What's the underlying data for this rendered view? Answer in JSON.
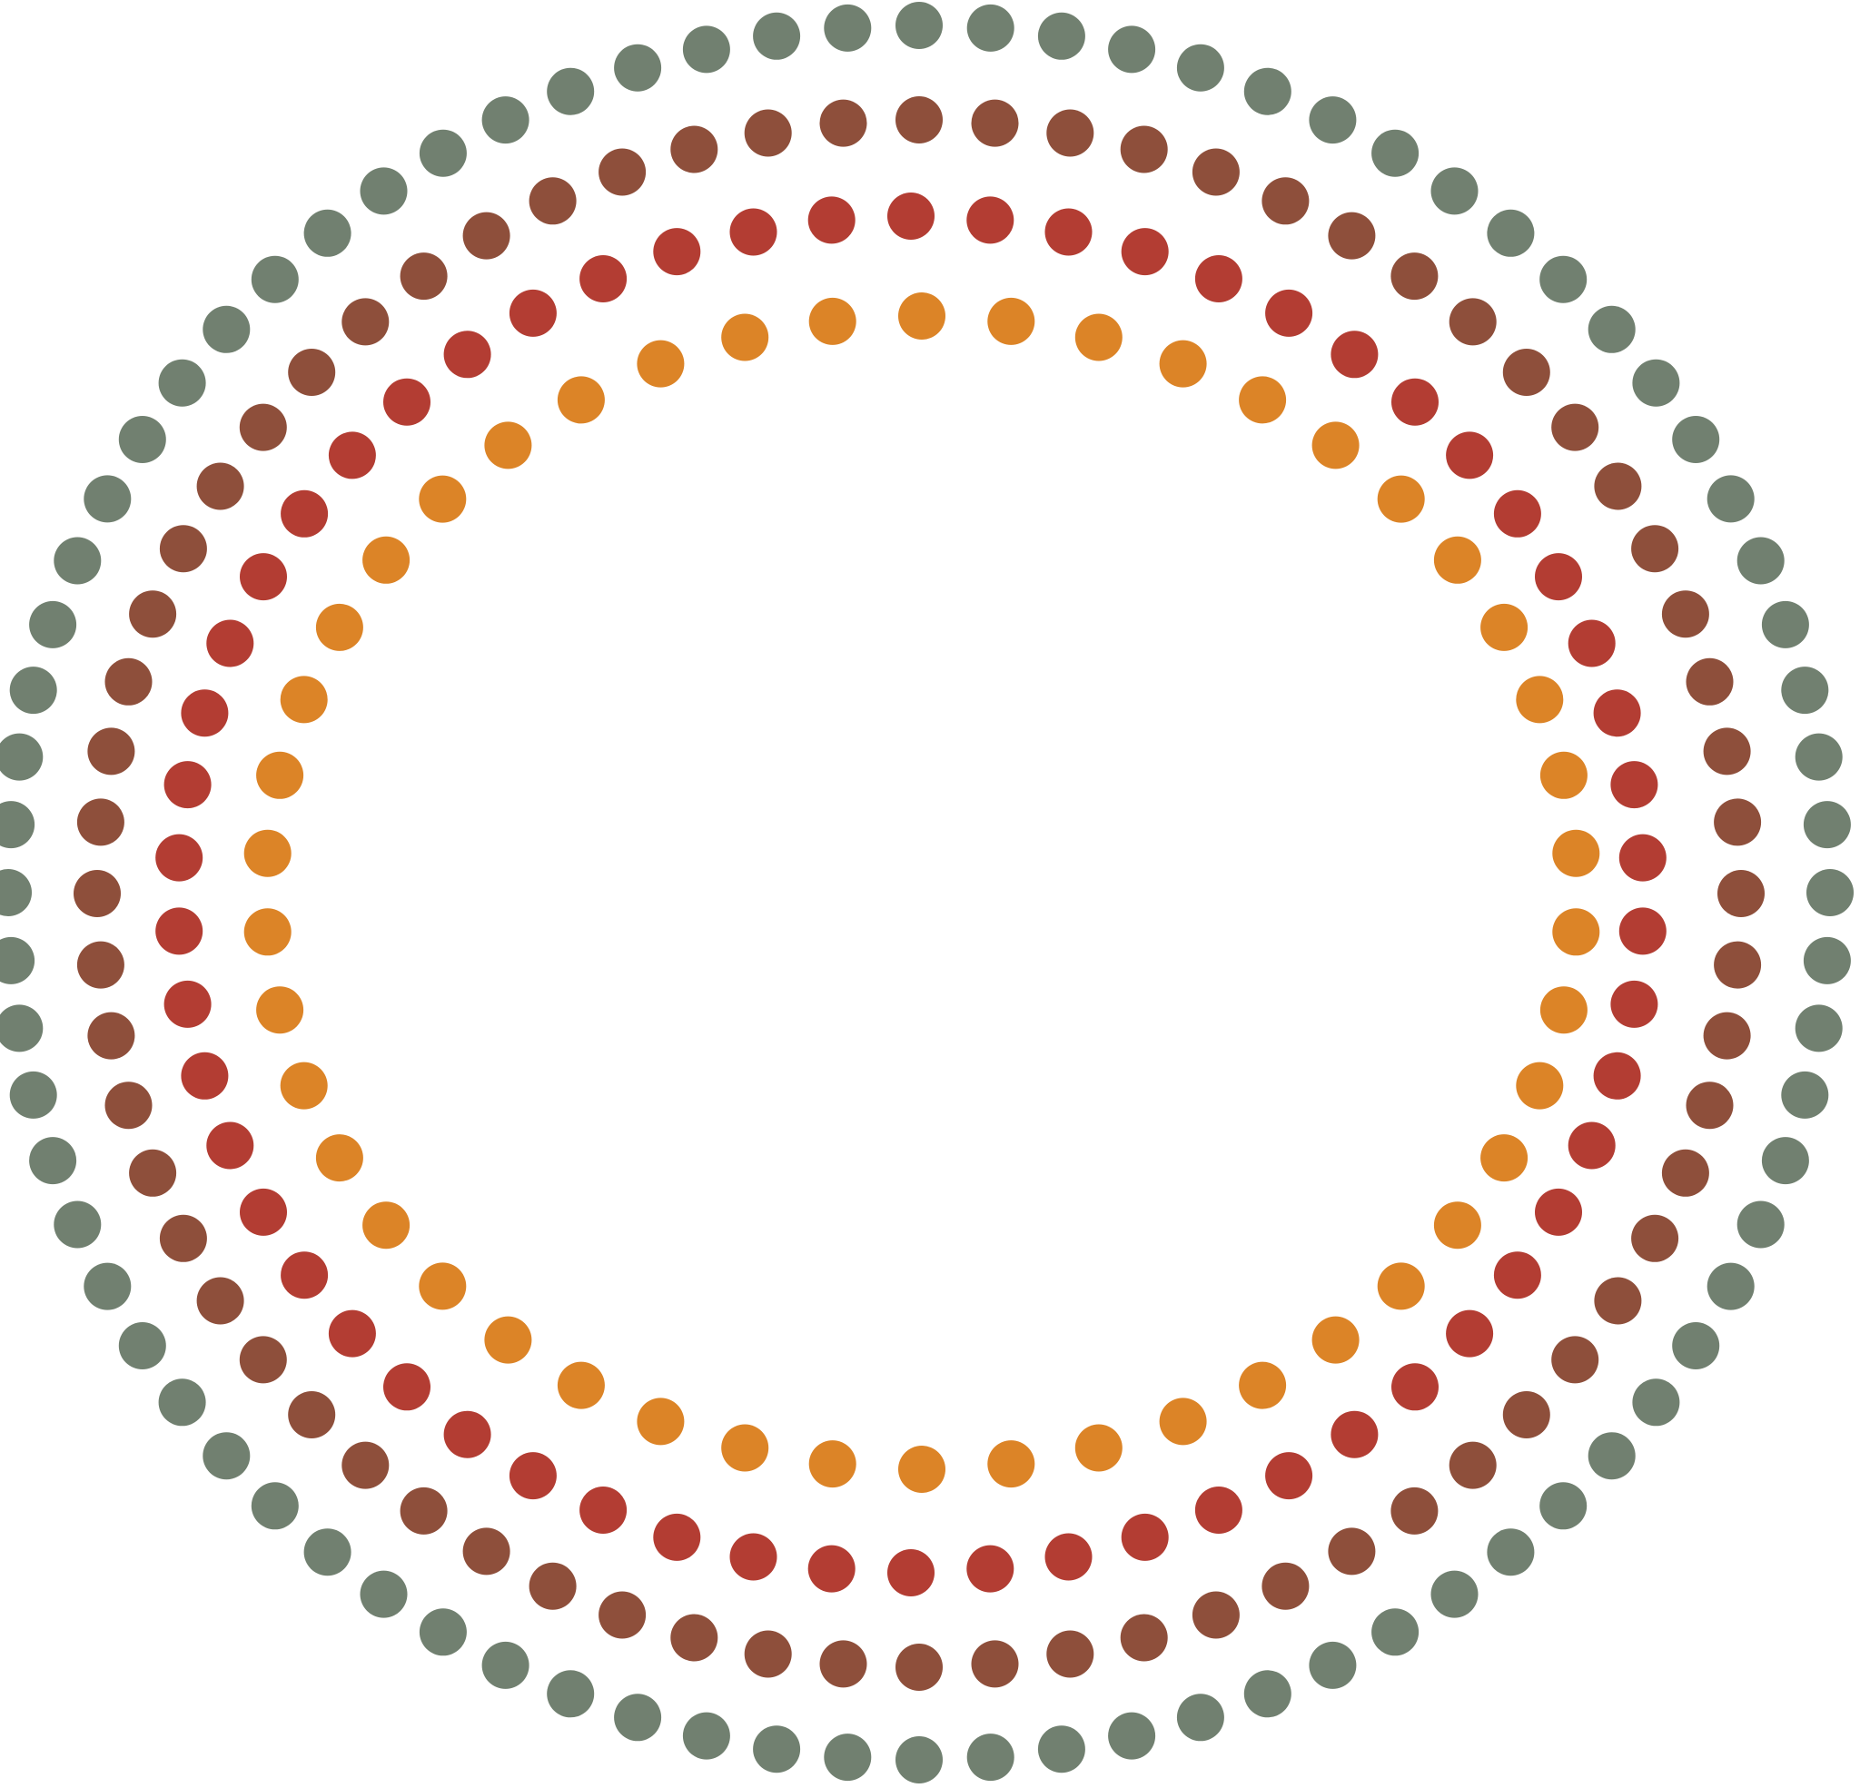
{
  "artwork": {
    "kind": "concentric dotted rings",
    "background": "#ffffff",
    "rings": [
      {
        "name": "outer-ring",
        "color": "#718070",
        "dot_count": 80
      },
      {
        "name": "second-ring",
        "color": "#8e4f3b",
        "dot_count": 68
      },
      {
        "name": "third-ring",
        "color": "#b33d33",
        "dot_count": 58
      },
      {
        "name": "inner-ring",
        "color": "#dc8427",
        "dot_count": 46
      }
    ]
  }
}
